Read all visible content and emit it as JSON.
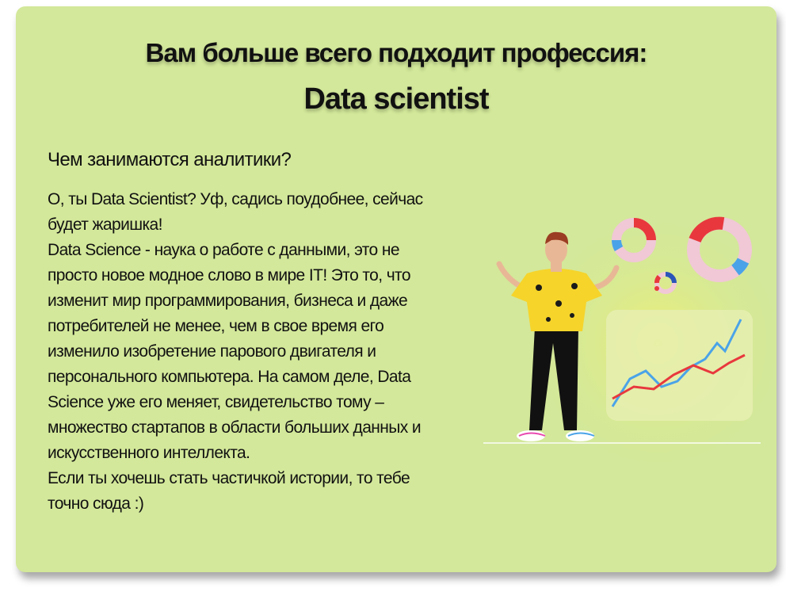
{
  "header": {
    "title_line1": "Вам больше всего подходит профессия:",
    "title_line2": "Data scientist"
  },
  "content": {
    "subheading": "Чем занимаются аналитики?",
    "paragraphs": [
      "О, ты Data Scientist? Уф, садись поудобнее, сейчас будет жаришка!",
      "Data Science - наука о работе с данными, это не просто новое модное слово в мире IT! Это то, что изменит мир программирования, бизнеса и даже потребителей не менее, чем в свое время его изменило изобретение парового двигателя и персонального компьютера. На самом деле, Data Science уже его меняет, свидетельство тому – множество стартапов в области больших данных и искусственного интеллекта.",
      "Если ты хочешь стать частичкой истории, то тебе точно сюда :)"
    ]
  },
  "colors": {
    "card_background": "#d3e89a",
    "chart_red": "#e8383d",
    "chart_blue": "#4aa3e8",
    "chart_pink": "#f0c8d6",
    "shirt_yellow": "#f6d42a"
  },
  "illustration": {
    "icon": "data-scientist-illustration"
  }
}
